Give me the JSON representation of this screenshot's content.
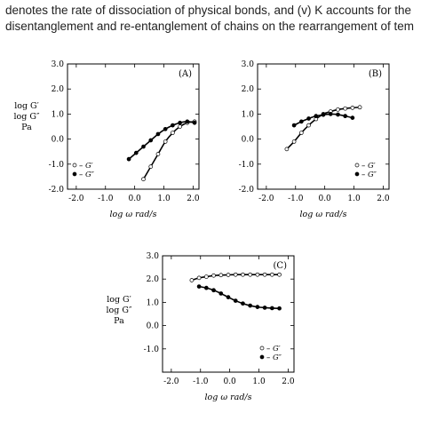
{
  "document": {
    "line1": "denotes the rate of dissociation of physical bonds, and (v) K accounts for the",
    "line2": "disentanglement and re-entanglement of chains on the rearrangement of tem"
  },
  "chart_data": [
    {
      "type": "line",
      "panel_label": "(A)",
      "xlabel": "log ω  rad/s",
      "ylabel": [
        "log G′",
        "log G″",
        "Pa"
      ],
      "xlim": [
        -2.3,
        2.2
      ],
      "ylim": [
        -2.0,
        3.0
      ],
      "xticks": [
        "-2.0",
        "-1.0",
        "0.0",
        "1.0",
        "2.0"
      ],
      "yticks": [
        "-2.0",
        "-1.0",
        "0.0",
        "1.0",
        "2.0",
        "3.0"
      ],
      "legend": {
        "position": "bottom-left",
        "entries": [
          "– G′",
          "– G″"
        ]
      },
      "series": [
        {
          "name": "G′",
          "marker": "open-circle",
          "x": [
            0.3,
            0.55,
            0.8,
            1.05,
            1.3,
            1.55,
            1.8,
            2.05
          ],
          "y": [
            -1.6,
            -1.1,
            -0.6,
            -0.1,
            0.25,
            0.5,
            0.65,
            0.7
          ]
        },
        {
          "name": "G″",
          "marker": "filled-circle",
          "x": [
            -0.2,
            0.05,
            0.3,
            0.55,
            0.8,
            1.05,
            1.3,
            1.55,
            1.8,
            2.05
          ],
          "y": [
            -0.8,
            -0.55,
            -0.3,
            -0.05,
            0.2,
            0.4,
            0.55,
            0.65,
            0.7,
            0.65
          ]
        }
      ]
    },
    {
      "type": "line",
      "panel_label": "(B)",
      "xlabel": "log ω  rad/s",
      "ylabel": [],
      "xlim": [
        -2.3,
        2.2
      ],
      "ylim": [
        -2.0,
        3.0
      ],
      "xticks": [
        "-2.0",
        "-1.0",
        "0.0",
        "1.0",
        "2.0"
      ],
      "yticks": [
        "-2.0",
        "-1.0",
        "0.0",
        "1.0",
        "2.0",
        "3.0"
      ],
      "legend": {
        "position": "bottom-right",
        "entries": [
          "– G′",
          "– G″"
        ]
      },
      "series": [
        {
          "name": "G′",
          "marker": "open-circle",
          "x": [
            -1.3,
            -1.05,
            -0.8,
            -0.55,
            -0.3,
            -0.05,
            0.2,
            0.45,
            0.7,
            0.95,
            1.2
          ],
          "y": [
            -0.4,
            -0.1,
            0.25,
            0.55,
            0.8,
            1.0,
            1.1,
            1.18,
            1.22,
            1.25,
            1.27
          ]
        },
        {
          "name": "G″",
          "marker": "filled-circle",
          "x": [
            -1.05,
            -0.8,
            -0.55,
            -0.3,
            -0.05,
            0.2,
            0.45,
            0.7,
            0.95
          ],
          "y": [
            0.55,
            0.7,
            0.82,
            0.92,
            0.97,
            1.0,
            0.98,
            0.92,
            0.85
          ]
        }
      ]
    },
    {
      "type": "line",
      "panel_label": "(C)",
      "xlabel": "log ω  rad/s",
      "ylabel": [
        "log G′",
        "log G″",
        "Pa"
      ],
      "xlim": [
        -2.3,
        2.2
      ],
      "ylim": [
        -2.0,
        3.0
      ],
      "xticks": [
        "-2.0",
        "-1.0",
        "0.0",
        "1.0",
        "2.0"
      ],
      "yticks": [
        "-1.0",
        "0.0",
        "1.0",
        "2.0",
        "3.0"
      ],
      "legend": {
        "position": "bottom-right",
        "entries": [
          "– G′",
          "– G″"
        ]
      },
      "series": [
        {
          "name": "G′",
          "marker": "open-circle",
          "x": [
            -1.3,
            -1.05,
            -0.8,
            -0.55,
            -0.3,
            -0.05,
            0.2,
            0.45,
            0.7,
            0.95,
            1.2,
            1.45,
            1.7
          ],
          "y": [
            1.95,
            2.05,
            2.1,
            2.15,
            2.17,
            2.18,
            2.19,
            2.19,
            2.19,
            2.19,
            2.19,
            2.19,
            2.19
          ]
        },
        {
          "name": "G″",
          "marker": "filled-circle",
          "x": [
            -1.05,
            -0.8,
            -0.55,
            -0.3,
            -0.05,
            0.2,
            0.45,
            0.7,
            0.95,
            1.2,
            1.45,
            1.7
          ],
          "y": [
            1.68,
            1.62,
            1.52,
            1.38,
            1.22,
            1.07,
            0.95,
            0.86,
            0.8,
            0.77,
            0.75,
            0.74
          ]
        }
      ]
    }
  ]
}
